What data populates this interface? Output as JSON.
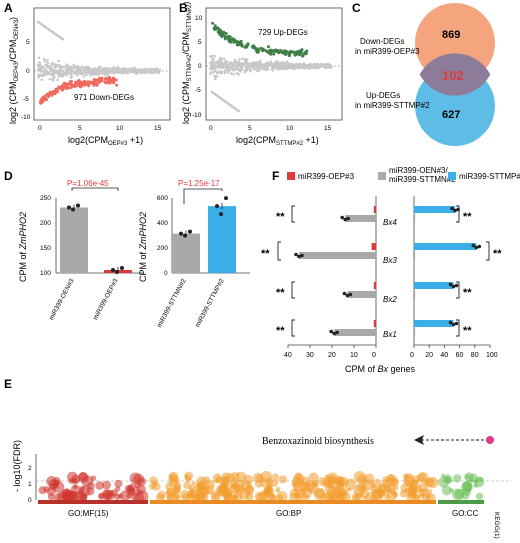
{
  "panels": {
    "A": "A",
    "B": "B",
    "C": "C",
    "D": "D",
    "E": "E",
    "F": "F"
  },
  "A": {
    "ylabel_main": "log2 (CPM",
    "ylabel_sub1": "OEP#3",
    "ylabel_mid": "/CPM",
    "ylabel_sub2": "OEN#3",
    "ylabel_end": ")",
    "xlabel_main": "log2(CPM",
    "xlabel_sub": "OEP#3",
    "xlabel_end": " +1)",
    "annotation": "971 Down-DEGs",
    "xticks": [
      "0",
      "5",
      "10",
      "15"
    ],
    "yticks": [
      "5",
      "0",
      "-5",
      "-10"
    ],
    "colors": {
      "dot": "#c8c8c8",
      "highlight": "#ef6a5c"
    }
  },
  "B": {
    "ylabel_main": "log2 (CPM",
    "ylabel_sub1": "STTMP#2",
    "ylabel_mid": "/CPM",
    "ylabel_sub2": "STTMN#2",
    "ylabel_end": ")",
    "xlabel_main": "log2(CPM",
    "xlabel_sub": "STTMP#2",
    "xlabel_end": " +1)",
    "annotation": "729 Up-DEGs",
    "xticks": [
      "0",
      "5",
      "10",
      "15"
    ],
    "yticks": [
      "10",
      "5",
      "0",
      "-5",
      "-10"
    ],
    "colors": {
      "dot": "#c8c8c8",
      "highlight": "#3f7f45"
    }
  },
  "C": {
    "label_down": "Down-DEGs",
    "label_down2": "in miR399-OEP#3",
    "label_up": "Up-DEGs",
    "label_up2": "in miR399-STTMP#2",
    "left_count": "869",
    "overlap": "102",
    "right_count": "627",
    "colors": {
      "orange": "#f4a57e",
      "blue": "#5ebde7",
      "overlap": "#e23b3b"
    }
  },
  "D": {
    "ylabel_left": "CPM of ",
    "ylabel_gene": "ZmPHO2",
    "pval_left": "P=1.06e-45",
    "pval_right": "P=1.25e-17",
    "yticks_left": [
      "250",
      "200",
      "150",
      "100"
    ],
    "yticks_right": [
      "600",
      "400",
      "200",
      "0"
    ],
    "chart_data": [
      {
        "type": "bar",
        "categories": [
          "miR399-OEN#3",
          "miR399-OEP#3"
        ],
        "values": [
          231,
          106
        ],
        "ylim": [
          100,
          250
        ],
        "colors": [
          "#a9a9a9",
          "#e03a3a"
        ]
      },
      {
        "type": "bar",
        "categories": [
          "miR399-STTMN#2",
          "miR399-STTMP#2"
        ],
        "values": [
          315,
          535
        ],
        "ylim": [
          0,
          600
        ],
        "colors": [
          "#a9a9a9",
          "#3aaee6"
        ]
      }
    ]
  },
  "E": {
    "ylabel": "- log10(FDR)",
    "yticks": [
      "2",
      "1",
      "0"
    ],
    "annotation": "Benzoxazinoid biosynthesis",
    "categories": [
      "GO:MF(15)",
      "GO:BP",
      "GO:CC",
      "KEGG(1)"
    ],
    "colors": {
      "mf": "#d0342c",
      "bp": "#f39c2d",
      "cc": "#6bbf59",
      "kegg": "#e0388c"
    }
  },
  "F": {
    "legend": [
      {
        "label": "miR399-OEP#3",
        "color": "#e03a3a"
      },
      {
        "label": "miR399-OEN#3/",
        "label2": "miR399-STTMN#2",
        "color": "#a9a9a9"
      },
      {
        "label": "miR399-STTMP#2",
        "color": "#3aaee6"
      }
    ],
    "xlabel_main": "CPM of ",
    "xlabel_gene": "Bx",
    "xlabel_end": " genes",
    "sig": "**",
    "chart_data": {
      "type": "bar",
      "categories": [
        "Bx4",
        "Bx3",
        "Bx2",
        "Bx1"
      ],
      "left_axis": [
        "40",
        "30",
        "20",
        "10",
        "0"
      ],
      "right_axis": [
        "0",
        "20",
        "40",
        "60",
        "80",
        "100"
      ],
      "series": [
        {
          "name": "miR399-OEP#3",
          "values": [
            1,
            2,
            1,
            1
          ]
        },
        {
          "name": "miR399-OEN#3/ miR399-STTMN#2",
          "values": [
            14,
            35,
            13,
            19
          ]
        },
        {
          "name": "miR399-STTMP#2",
          "values": [
            54,
            82,
            52,
            52
          ]
        }
      ]
    }
  }
}
